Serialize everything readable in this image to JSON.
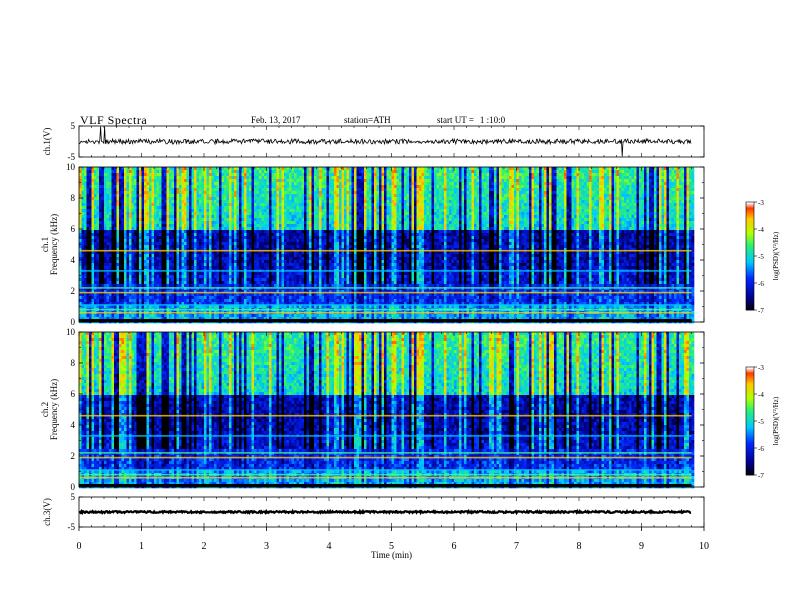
{
  "header": {
    "title": "VLF  Spectra",
    "date": "Feb. 13, 2017",
    "station_label": "station=",
    "station": "ATH",
    "start_label": "start  UT  =",
    "start_time": "1 :10:0"
  },
  "chart_data": [
    {
      "id": "ch1-waveform",
      "type": "line",
      "ylabel": "ch.1(V)",
      "yticks": [
        "5",
        "-5"
      ],
      "ylim": [
        -5,
        5
      ],
      "xlim": [
        0,
        10
      ],
      "baseline": 0,
      "noise_amplitude": 0.8,
      "color": "#000000"
    },
    {
      "id": "ch1-spectrogram",
      "type": "heatmap",
      "ylabel_top": "ch.1",
      "ylabel": "Frequency  (kHz)",
      "yticks": [
        "0",
        "2",
        "4",
        "6",
        "8",
        "10"
      ],
      "ylim": [
        0,
        10
      ],
      "xlim": [
        0,
        10
      ],
      "data_end_min": 9.8,
      "colorbar": {
        "label": "log(PSD)(V²/Hz)",
        "ticks": [
          "-3",
          "-4",
          "-5",
          "-6",
          "-7"
        ],
        "range": [
          -7,
          -3
        ]
      }
    },
    {
      "id": "ch2-spectrogram",
      "type": "heatmap",
      "ylabel_top": "ch.2",
      "ylabel": "Frequency  (kHz)",
      "yticks": [
        "0",
        "2",
        "4",
        "6",
        "8",
        "10"
      ],
      "ylim": [
        0,
        10
      ],
      "xlim": [
        0,
        10
      ],
      "data_end_min": 9.8,
      "colorbar": {
        "label": "log(PSD)(V²/Hz)",
        "ticks": [
          "-3",
          "-4",
          "-5",
          "-6",
          "-7"
        ],
        "range": [
          -7,
          -3
        ]
      }
    },
    {
      "id": "ch3-waveform",
      "type": "line",
      "ylabel": "ch.3(V)",
      "yticks": [
        "5",
        "-5"
      ],
      "ylim": [
        -5,
        5
      ],
      "xlim": [
        0,
        10
      ],
      "baseline": 0,
      "noise_amplitude": 0.3,
      "color": "#000000"
    }
  ],
  "x_axis": {
    "label": "Time  (min)",
    "ticks": [
      "0",
      "1",
      "2",
      "3",
      "4",
      "5",
      "6",
      "7",
      "8",
      "9",
      "10"
    ]
  }
}
